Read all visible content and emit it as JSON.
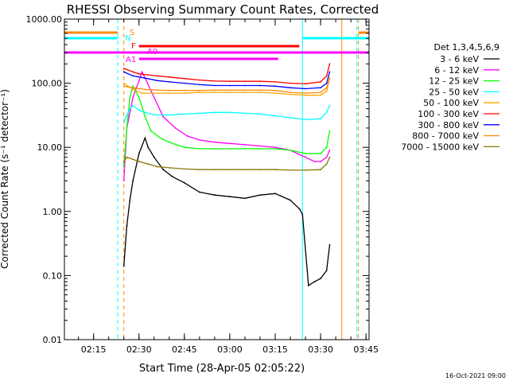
{
  "chart_data": {
    "type": "line",
    "title": "RHESSI Observing Summary Count Rates, Corrected",
    "xlabel": "Start Time (28-Apr-05 02:05:22)",
    "ylabel": "Corrected Count Rate (s⁻¹ detector⁻¹)",
    "footer": "16-Oct-2021 09:00",
    "y_scale": "log",
    "ylim": [
      0.01,
      1000
    ],
    "xlim": [
      "02:05:22",
      "03:46:00"
    ],
    "y_ticks": [
      "0.01",
      "0.10",
      "1.00",
      "10.00",
      "100.00",
      "1000.00"
    ],
    "x_ticks": [
      "02:15",
      "02:30",
      "02:45",
      "03:00",
      "03:15",
      "03:30",
      "03:45"
    ],
    "legend_title": "Det 1,3,4,5,6,9",
    "legend_position": "right",
    "flag_labels": [
      "S",
      "N",
      "F",
      "A0",
      "A1"
    ],
    "series": [
      {
        "name": "3 - 6 keV",
        "color": "#000000",
        "x": [
          "02:25:00",
          "02:26:00",
          "02:27:00",
          "02:28:00",
          "02:30:00",
          "02:32:00",
          "02:33:00",
          "02:35:00",
          "02:38:00",
          "02:41:00",
          "02:45:00",
          "02:50:00",
          "02:55:00",
          "03:00:00",
          "03:05:00",
          "03:10:00",
          "03:15:00",
          "03:20:00",
          "03:23:00",
          "03:24:00",
          "03:26:00",
          "03:28:00",
          "03:30:00",
          "03:32:00",
          "03:33:00"
        ],
        "values": [
          0.14,
          0.6,
          1.5,
          3.0,
          8.0,
          14.0,
          10.0,
          7.0,
          4.5,
          3.5,
          2.8,
          2.0,
          1.8,
          1.7,
          1.6,
          1.8,
          1.9,
          1.5,
          1.1,
          0.9,
          0.07,
          0.08,
          0.09,
          0.12,
          0.3
        ]
      },
      {
        "name": "6 - 12 keV",
        "color": "#ff00ff",
        "x": [
          "02:25:00",
          "02:26:00",
          "02:28:00",
          "02:30:00",
          "02:31:00",
          "02:32:00",
          "02:35:00",
          "02:38:00",
          "02:42:00",
          "02:46:00",
          "02:50:00",
          "02:55:00",
          "03:00:00",
          "03:05:00",
          "03:10:00",
          "03:15:00",
          "03:20:00",
          "03:25:00",
          "03:28:00",
          "03:30:00",
          "03:32:00",
          "03:33:00"
        ],
        "values": [
          3.0,
          20,
          60,
          110,
          150,
          120,
          60,
          30,
          20,
          15,
          13,
          12,
          11.5,
          11,
          10.5,
          10,
          9,
          7,
          6,
          6,
          7,
          9
        ]
      },
      {
        "name": "12 - 25 keV",
        "color": "#00ff00",
        "x": [
          "02:25:00",
          "02:26:00",
          "02:27:00",
          "02:28:00",
          "02:30:00",
          "02:32:00",
          "02:34:00",
          "02:37:00",
          "02:40:00",
          "02:45:00",
          "02:50:00",
          "02:55:00",
          "03:00:00",
          "03:05:00",
          "03:10:00",
          "03:15:00",
          "03:20:00",
          "03:25:00",
          "03:30:00",
          "03:32:00",
          "03:33:00"
        ],
        "values": [
          5,
          20,
          60,
          90,
          60,
          30,
          18,
          14,
          12,
          10,
          9.5,
          9.5,
          9.5,
          9.5,
          9.5,
          9.5,
          9,
          8,
          8,
          10,
          18
        ]
      },
      {
        "name": "25 - 50 keV",
        "color": "#00ffff",
        "x": [
          "02:25:00",
          "02:27:00",
          "02:28:00",
          "02:30:00",
          "02:32:00",
          "02:35:00",
          "02:40:00",
          "02:45:00",
          "02:50:00",
          "02:55:00",
          "03:00:00",
          "03:05:00",
          "03:10:00",
          "03:15:00",
          "03:20:00",
          "03:25:00",
          "03:30:00",
          "03:32:00",
          "03:33:00"
        ],
        "values": [
          25,
          40,
          45,
          38,
          35,
          32,
          32,
          33,
          34,
          35,
          35,
          34,
          33,
          31,
          29,
          27,
          28,
          35,
          45
        ]
      },
      {
        "name": "50 - 100 keV",
        "color": "#ffa500",
        "x": [
          "02:25:00",
          "02:28:00",
          "02:31:00",
          "02:35:00",
          "02:40:00",
          "02:45:00",
          "02:50:00",
          "02:55:00",
          "03:00:00",
          "03:05:00",
          "03:10:00",
          "03:15:00",
          "03:20:00",
          "03:25:00",
          "03:30:00",
          "03:32:00",
          "03:33:00"
        ],
        "values": [
          100,
          80,
          70,
          70,
          70,
          70,
          72,
          72,
          72,
          72,
          72,
          70,
          67,
          65,
          65,
          75,
          120
        ]
      },
      {
        "name": "100 - 300 keV",
        "color": "#ff0000",
        "x": [
          "02:25:00",
          "02:28:00",
          "02:30:00",
          "02:33:00",
          "02:36:00",
          "02:40:00",
          "02:45:00",
          "02:50:00",
          "02:55:00",
          "03:00:00",
          "03:05:00",
          "03:10:00",
          "03:15:00",
          "03:20:00",
          "03:25:00",
          "03:30:00",
          "03:32:00",
          "03:33:00"
        ],
        "values": [
          170,
          150,
          140,
          135,
          130,
          125,
          118,
          112,
          108,
          107,
          107,
          107,
          105,
          100,
          98,
          105,
          130,
          200
        ]
      },
      {
        "name": "300 - 800 keV",
        "color": "#0000ff",
        "x": [
          "02:25:00",
          "02:28:00",
          "02:32:00",
          "02:36:00",
          "02:40:00",
          "02:45:00",
          "02:50:00",
          "02:55:00",
          "03:00:00",
          "03:05:00",
          "03:10:00",
          "03:15:00",
          "03:20:00",
          "03:25:00",
          "03:30:00",
          "03:32:00",
          "03:33:00"
        ],
        "values": [
          150,
          130,
          120,
          110,
          105,
          100,
          95,
          92,
          92,
          92,
          92,
          90,
          85,
          82,
          85,
          100,
          150
        ]
      },
      {
        "name": "800 - 7000 keV",
        "color": "#ff8c00",
        "x": [
          "02:25:00",
          "02:28:00",
          "02:32:00",
          "02:36:00",
          "02:40:00",
          "02:45:00",
          "02:50:00",
          "02:55:00",
          "03:00:00",
          "03:05:00",
          "03:10:00",
          "03:15:00",
          "03:20:00",
          "03:25:00",
          "03:30:00",
          "03:32:00",
          "03:33:00"
        ],
        "values": [
          90,
          85,
          80,
          78,
          77,
          77,
          77,
          78,
          78,
          78,
          78,
          77,
          72,
          70,
          72,
          85,
          120
        ]
      },
      {
        "name": "7000 - 15000 keV",
        "color": "#8b7500",
        "x": [
          "02:25:00",
          "02:26:00",
          "02:28:00",
          "02:30:00",
          "02:33:00",
          "02:36:00",
          "02:40:00",
          "02:45:00",
          "02:50:00",
          "02:55:00",
          "03:00:00",
          "03:05:00",
          "03:10:00",
          "03:15:00",
          "03:20:00",
          "03:25:00",
          "03:30:00",
          "03:32:00",
          "03:33:00"
        ],
        "values": [
          6,
          7,
          6.5,
          6,
          5.5,
          5,
          4.8,
          4.6,
          4.5,
          4.5,
          4.5,
          4.5,
          4.5,
          4.5,
          4.4,
          4.4,
          4.5,
          5.5,
          7
        ]
      }
    ],
    "vertical_lines": [
      {
        "time": "02:23:00",
        "color": "#00ffff",
        "style": "dashed"
      },
      {
        "time": "02:25:00",
        "color": "#ff8c00",
        "style": "dashed"
      },
      {
        "time": "03:24:00",
        "color": "#00ffff",
        "style": "solid"
      },
      {
        "time": "03:37:00",
        "color": "#ff8c00",
        "style": "solid"
      },
      {
        "time": "03:42:00",
        "color": "#00ffff",
        "style": "dashed"
      },
      {
        "time": "03:42:30",
        "color": "#ff8c00",
        "style": "dashed"
      }
    ],
    "flag_bars": [
      {
        "label": "S",
        "color": "#ff8c00",
        "level": 1,
        "start": "02:05:22",
        "end": "02:23:00"
      },
      {
        "label": "S",
        "color": "#ff8c00",
        "level": 1,
        "start": "03:42:30",
        "end": "03:46:00"
      },
      {
        "label": "N",
        "color": "#00ffff",
        "level": 2,
        "start": "02:05:22",
        "end": "02:23:00"
      },
      {
        "label": "N",
        "color": "#00ffff",
        "level": 2,
        "start": "03:24:00",
        "end": "03:46:00"
      },
      {
        "label": "F",
        "color": "#ff0000",
        "level": 3,
        "start": "02:30:00",
        "end": "03:23:00"
      },
      {
        "label": "A0",
        "color": "#ff00ff",
        "level": 4,
        "start": "02:05:22",
        "end": "03:46:00"
      },
      {
        "label": "A1",
        "color": "#ff00ff",
        "level": 5,
        "start": "02:30:00",
        "end": "03:16:00"
      }
    ]
  }
}
